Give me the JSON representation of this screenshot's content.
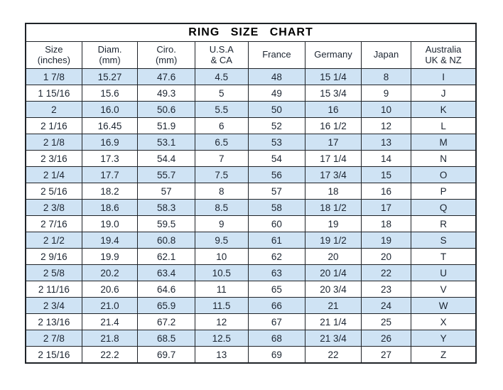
{
  "title": "RING SIZE CHART",
  "colors": {
    "stripe": "#cfe3f4",
    "row_alt": "#ffffff",
    "border": "#1f2328",
    "text": "#1c2531",
    "background": "#ffffff"
  },
  "chart_data": {
    "type": "table",
    "title": "RING SIZE CHART",
    "legend_position": "none",
    "grid": "full-borders",
    "columns": [
      {
        "line1": "Size",
        "line2": "(inches)"
      },
      {
        "line1": "Diam.",
        "line2": "(mm)"
      },
      {
        "line1": "Ciro.",
        "line2": "(mm)"
      },
      {
        "line1": "U.S.A",
        "line2": "& CA"
      },
      {
        "line1": "France",
        "line2": ""
      },
      {
        "line1": "Germany",
        "line2": ""
      },
      {
        "line1": "Japan",
        "line2": ""
      },
      {
        "line1": "Australia",
        "line2": "UK & NZ"
      }
    ],
    "rows": [
      [
        "1 7/8",
        "15.27",
        "47.6",
        "4.5",
        "48",
        "15 1/4",
        "8",
        "I"
      ],
      [
        "1 15/16",
        "15.6",
        "49.3",
        "5",
        "49",
        "15 3/4",
        "9",
        "J"
      ],
      [
        "2",
        "16.0",
        "50.6",
        "5.5",
        "50",
        "16",
        "10",
        "K"
      ],
      [
        "2 1/16",
        "16.45",
        "51.9",
        "6",
        "52",
        "16 1/2",
        "12",
        "L"
      ],
      [
        "2 1/8",
        "16.9",
        "53.1",
        "6.5",
        "53",
        "17",
        "13",
        "M"
      ],
      [
        "2 3/16",
        "17.3",
        "54.4",
        "7",
        "54",
        "17 1/4",
        "14",
        "N"
      ],
      [
        "2 1/4",
        "17.7",
        "55.7",
        "7.5",
        "56",
        "17 3/4",
        "15",
        "O"
      ],
      [
        "2 5/16",
        "18.2",
        "57",
        "8",
        "57",
        "18",
        "16",
        "P"
      ],
      [
        "2 3/8",
        "18.6",
        "58.3",
        "8.5",
        "58",
        "18 1/2",
        "17",
        "Q"
      ],
      [
        "2 7/16",
        "19.0",
        "59.5",
        "9",
        "60",
        "19",
        "18",
        "R"
      ],
      [
        "2 1/2",
        "19.4",
        "60.8",
        "9.5",
        "61",
        "19 1/2",
        "19",
        "S"
      ],
      [
        "2 9/16",
        "19.9",
        "62.1",
        "10",
        "62",
        "20",
        "20",
        "T"
      ],
      [
        "2 5/8",
        "20.2",
        "63.4",
        "10.5",
        "63",
        "20 1/4",
        "22",
        "U"
      ],
      [
        "2 11/16",
        "20.6",
        "64.6",
        "11",
        "65",
        "20 3/4",
        "23",
        "V"
      ],
      [
        "2 3/4",
        "21.0",
        "65.9",
        "11.5",
        "66",
        "21",
        "24",
        "W"
      ],
      [
        "2 13/16",
        "21.4",
        "67.2",
        "12",
        "67",
        "21 1/4",
        "25",
        "X"
      ],
      [
        "2 7/8",
        "21.8",
        "68.5",
        "12.5",
        "68",
        "21 3/4",
        "26",
        "Y"
      ],
      [
        "2 15/16",
        "22.2",
        "69.7",
        "13",
        "69",
        "22",
        "27",
        "Z"
      ]
    ],
    "column_widths_pct": [
      12.5,
      12.4,
      12.7,
      11.8,
      12.7,
      12.4,
      11.1,
      14.4
    ],
    "stripe_pattern": "first-row-blue-alternating"
  }
}
